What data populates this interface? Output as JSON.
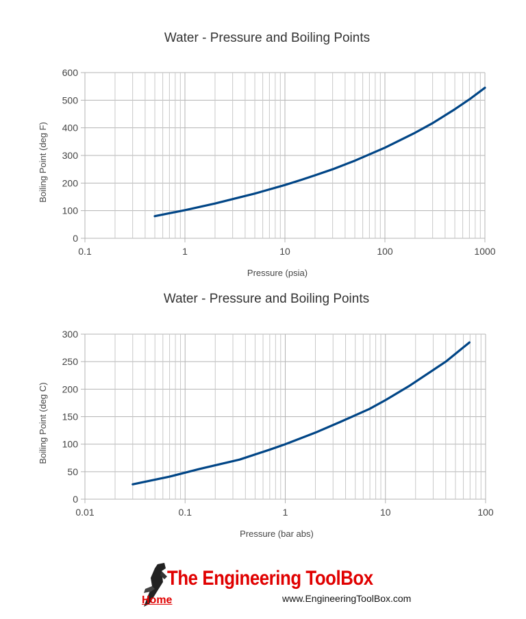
{
  "chart_data": [
    {
      "type": "line",
      "title": "Water - Pressure and Boiling Points",
      "xlabel": "Pressure (psia)",
      "ylabel": "Boiling Point (deg F)",
      "x_scale": "log",
      "xlim": [
        0.1,
        1000
      ],
      "ylim": [
        0,
        600
      ],
      "x_ticks": [
        "0.1",
        "1",
        "10",
        "100",
        "1000"
      ],
      "y_ticks": [
        "0",
        "100",
        "200",
        "300",
        "400",
        "500",
        "600"
      ],
      "grid": true,
      "legend": "none",
      "series": [
        {
          "color": "#004586",
          "x": [
            0.5,
            1,
            2,
            5,
            10,
            14.7,
            20,
            30,
            50,
            100,
            200,
            300,
            500,
            700,
            1000
          ],
          "y": [
            80,
            102,
            126,
            162,
            193,
            212,
            228,
            250,
            281,
            328,
            382,
            417,
            467,
            503,
            545
          ]
        }
      ]
    },
    {
      "type": "line",
      "title": "Water - Pressure and Boiling Points",
      "xlabel": "Pressure (bar abs)",
      "ylabel": "Boiling Point (deg C)",
      "x_scale": "log",
      "xlim": [
        0.01,
        100
      ],
      "ylim": [
        0,
        300
      ],
      "x_ticks": [
        "0.01",
        "0.1",
        "1",
        "10",
        "100"
      ],
      "y_ticks": [
        "0",
        "50",
        "100",
        "150",
        "200",
        "250",
        "300"
      ],
      "grid": true,
      "legend": "none",
      "series": [
        {
          "color": "#004586",
          "x": [
            0.03,
            0.07,
            0.14,
            0.35,
            0.7,
            1.0,
            2.0,
            3.5,
            6.9,
            10,
            17,
            40,
            69
          ],
          "y": [
            27,
            41,
            55,
            72,
            90,
            100,
            121,
            140,
            164,
            180,
            205,
            250,
            285
          ]
        }
      ]
    }
  ],
  "logo": {
    "title": "The Engineering ToolBox",
    "home_label": "Home",
    "url": "www.EngineeringToolBox.com"
  }
}
